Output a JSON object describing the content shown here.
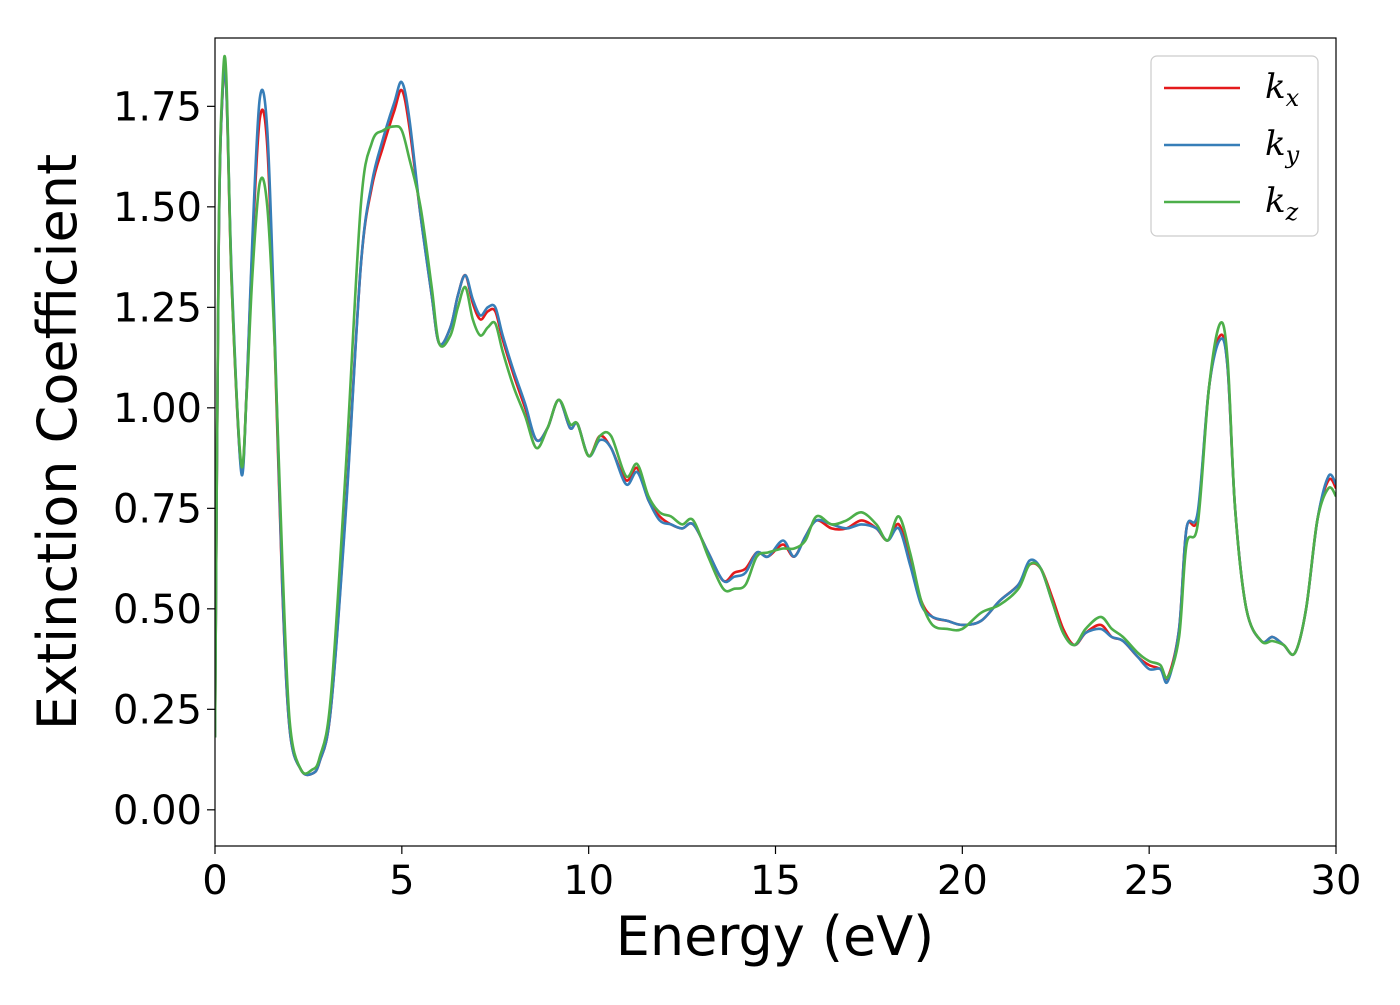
{
  "chart_data": {
    "type": "line",
    "title": "",
    "xlabel": "Energy (eV)",
    "ylabel": "Extinction Coefficient",
    "xlim": [
      0,
      30
    ],
    "ylim": [
      -0.09,
      1.92
    ],
    "xticks": [
      0,
      5,
      10,
      15,
      20,
      25,
      30
    ],
    "xtick_labels": [
      "0",
      "5",
      "10",
      "15",
      "20",
      "25",
      "30"
    ],
    "yticks": [
      0.0,
      0.25,
      0.5,
      0.75,
      1.0,
      1.25,
      1.5,
      1.75
    ],
    "ytick_labels": [
      "0.00",
      "0.25",
      "0.50",
      "0.75",
      "1.00",
      "1.25",
      "1.50",
      "1.75"
    ],
    "grid": false,
    "legend_position": "top-right",
    "series": [
      {
        "name": "k_x",
        "label_base": "k",
        "label_sub": "x",
        "color": "#e41a1c",
        "x": [
          0,
          0.1,
          0.2,
          0.3,
          0.45,
          0.7,
          0.85,
          1.0,
          1.2,
          1.4,
          1.6,
          1.8,
          2.0,
          2.3,
          2.6,
          2.8,
          3.1,
          3.5,
          3.9,
          4.2,
          4.5,
          4.8,
          5.0,
          5.2,
          5.5,
          5.8,
          6.0,
          6.3,
          6.5,
          6.7,
          6.9,
          7.1,
          7.3,
          7.5,
          7.7,
          8.0,
          8.3,
          8.6,
          8.9,
          9.2,
          9.5,
          9.7,
          10.0,
          10.3,
          10.6,
          11.0,
          11.3,
          11.6,
          11.9,
          12.2,
          12.5,
          12.8,
          13.2,
          13.6,
          13.9,
          14.2,
          14.5,
          14.8,
          15.2,
          15.5,
          15.8,
          16.1,
          16.5,
          16.9,
          17.3,
          17.7,
          18.0,
          18.3,
          18.6,
          18.9,
          19.2,
          19.6,
          20.0,
          20.5,
          21.0,
          21.5,
          21.8,
          22.1,
          22.4,
          22.7,
          23.0,
          23.3,
          23.7,
          24.0,
          24.3,
          24.7,
          25.0,
          25.3,
          25.5,
          25.8,
          26.0,
          26.3,
          26.6,
          26.9,
          27.1,
          27.3,
          27.6,
          28.0,
          28.3,
          28.6,
          28.9,
          29.2,
          29.5,
          29.8,
          30.0
        ],
        "y": [
          0.18,
          1.4,
          1.78,
          1.8,
          1.3,
          0.85,
          1.05,
          1.4,
          1.72,
          1.65,
          1.15,
          0.55,
          0.2,
          0.1,
          0.09,
          0.12,
          0.25,
          0.75,
          1.35,
          1.55,
          1.65,
          1.74,
          1.79,
          1.7,
          1.48,
          1.28,
          1.16,
          1.2,
          1.28,
          1.33,
          1.26,
          1.22,
          1.24,
          1.24,
          1.17,
          1.08,
          1.0,
          0.92,
          0.95,
          1.02,
          0.95,
          0.96,
          0.88,
          0.93,
          0.9,
          0.82,
          0.85,
          0.77,
          0.73,
          0.71,
          0.7,
          0.71,
          0.64,
          0.57,
          0.59,
          0.6,
          0.64,
          0.63,
          0.66,
          0.63,
          0.68,
          0.72,
          0.7,
          0.7,
          0.72,
          0.7,
          0.67,
          0.71,
          0.62,
          0.52,
          0.48,
          0.47,
          0.46,
          0.47,
          0.52,
          0.56,
          0.61,
          0.6,
          0.53,
          0.45,
          0.41,
          0.44,
          0.46,
          0.43,
          0.42,
          0.38,
          0.36,
          0.35,
          0.33,
          0.45,
          0.7,
          0.73,
          1.05,
          1.18,
          1.1,
          0.75,
          0.5,
          0.42,
          0.43,
          0.41,
          0.39,
          0.5,
          0.72,
          0.82,
          0.8
        ]
      },
      {
        "name": "k_y",
        "label_base": "k",
        "label_sub": "y",
        "color": "#377eb8",
        "x": [
          0,
          0.1,
          0.2,
          0.3,
          0.45,
          0.7,
          0.85,
          1.0,
          1.2,
          1.4,
          1.6,
          1.8,
          2.0,
          2.3,
          2.6,
          2.8,
          3.1,
          3.5,
          3.9,
          4.2,
          4.5,
          4.8,
          5.0,
          5.2,
          5.5,
          5.8,
          6.0,
          6.3,
          6.5,
          6.7,
          6.9,
          7.1,
          7.3,
          7.5,
          7.7,
          8.0,
          8.3,
          8.6,
          8.9,
          9.2,
          9.5,
          9.7,
          10.0,
          10.3,
          10.6,
          11.0,
          11.3,
          11.6,
          11.9,
          12.2,
          12.5,
          12.8,
          13.2,
          13.6,
          13.9,
          14.2,
          14.5,
          14.8,
          15.2,
          15.5,
          15.8,
          16.1,
          16.5,
          16.9,
          17.3,
          17.7,
          18.0,
          18.3,
          18.6,
          18.9,
          19.2,
          19.6,
          20.0,
          20.5,
          21.0,
          21.5,
          21.8,
          22.1,
          22.4,
          22.7,
          23.0,
          23.3,
          23.7,
          24.0,
          24.3,
          24.7,
          25.0,
          25.3,
          25.5,
          25.8,
          26.0,
          26.3,
          26.6,
          26.9,
          27.1,
          27.3,
          27.6,
          28.0,
          28.3,
          28.6,
          28.9,
          29.2,
          29.5,
          29.8,
          30.0
        ],
        "y": [
          0.18,
          1.4,
          1.78,
          1.8,
          1.32,
          0.84,
          1.05,
          1.42,
          1.77,
          1.69,
          1.18,
          0.56,
          0.2,
          0.1,
          0.09,
          0.12,
          0.25,
          0.74,
          1.35,
          1.56,
          1.67,
          1.76,
          1.81,
          1.72,
          1.48,
          1.28,
          1.16,
          1.2,
          1.28,
          1.33,
          1.27,
          1.23,
          1.25,
          1.25,
          1.18,
          1.09,
          1.01,
          0.92,
          0.95,
          1.02,
          0.95,
          0.96,
          0.88,
          0.92,
          0.9,
          0.81,
          0.84,
          0.77,
          0.72,
          0.71,
          0.7,
          0.71,
          0.64,
          0.57,
          0.58,
          0.59,
          0.64,
          0.63,
          0.67,
          0.63,
          0.68,
          0.72,
          0.71,
          0.7,
          0.71,
          0.7,
          0.67,
          0.7,
          0.61,
          0.51,
          0.48,
          0.47,
          0.46,
          0.47,
          0.52,
          0.56,
          0.62,
          0.6,
          0.52,
          0.44,
          0.41,
          0.44,
          0.45,
          0.43,
          0.42,
          0.38,
          0.35,
          0.35,
          0.32,
          0.45,
          0.7,
          0.74,
          1.05,
          1.17,
          1.1,
          0.75,
          0.5,
          0.42,
          0.43,
          0.41,
          0.39,
          0.5,
          0.72,
          0.83,
          0.81
        ]
      },
      {
        "name": "k_z",
        "label_base": "k",
        "label_sub": "z",
        "color": "#4daf4a",
        "x": [
          0,
          0.1,
          0.2,
          0.3,
          0.45,
          0.7,
          0.85,
          1.0,
          1.2,
          1.4,
          1.6,
          1.8,
          2.0,
          2.3,
          2.6,
          2.8,
          3.1,
          3.5,
          3.9,
          4.2,
          4.5,
          4.8,
          5.0,
          5.2,
          5.5,
          5.8,
          6.0,
          6.3,
          6.5,
          6.7,
          6.9,
          7.1,
          7.3,
          7.5,
          7.7,
          8.0,
          8.3,
          8.6,
          8.9,
          9.2,
          9.5,
          9.7,
          10.0,
          10.3,
          10.6,
          11.0,
          11.3,
          11.6,
          11.9,
          12.2,
          12.5,
          12.8,
          13.2,
          13.6,
          13.9,
          14.2,
          14.5,
          14.8,
          15.2,
          15.5,
          15.8,
          16.1,
          16.5,
          16.9,
          17.3,
          17.7,
          18.0,
          18.3,
          18.6,
          18.9,
          19.2,
          19.6,
          20.0,
          20.5,
          21.0,
          21.5,
          21.8,
          22.1,
          22.4,
          22.7,
          23.0,
          23.3,
          23.7,
          24.0,
          24.3,
          24.7,
          25.0,
          25.3,
          25.5,
          25.8,
          26.0,
          26.3,
          26.6,
          26.9,
          27.1,
          27.3,
          27.6,
          28.0,
          28.3,
          28.6,
          28.9,
          29.2,
          29.5,
          29.8,
          30.0
        ],
        "y": [
          0.18,
          1.42,
          1.8,
          1.83,
          1.3,
          0.86,
          1.04,
          1.33,
          1.56,
          1.5,
          1.15,
          0.62,
          0.22,
          0.1,
          0.1,
          0.13,
          0.28,
          0.85,
          1.5,
          1.66,
          1.69,
          1.7,
          1.69,
          1.62,
          1.5,
          1.3,
          1.16,
          1.18,
          1.25,
          1.3,
          1.22,
          1.18,
          1.2,
          1.21,
          1.14,
          1.05,
          0.98,
          0.9,
          0.95,
          1.02,
          0.96,
          0.96,
          0.88,
          0.93,
          0.93,
          0.83,
          0.86,
          0.78,
          0.74,
          0.73,
          0.71,
          0.72,
          0.63,
          0.55,
          0.55,
          0.56,
          0.63,
          0.64,
          0.65,
          0.65,
          0.67,
          0.73,
          0.71,
          0.72,
          0.74,
          0.71,
          0.67,
          0.73,
          0.64,
          0.52,
          0.46,
          0.45,
          0.45,
          0.49,
          0.51,
          0.55,
          0.61,
          0.6,
          0.52,
          0.44,
          0.41,
          0.45,
          0.48,
          0.45,
          0.43,
          0.39,
          0.37,
          0.36,
          0.33,
          0.43,
          0.66,
          0.71,
          1.05,
          1.21,
          1.12,
          0.75,
          0.5,
          0.42,
          0.42,
          0.41,
          0.39,
          0.5,
          0.72,
          0.8,
          0.78
        ]
      }
    ]
  }
}
